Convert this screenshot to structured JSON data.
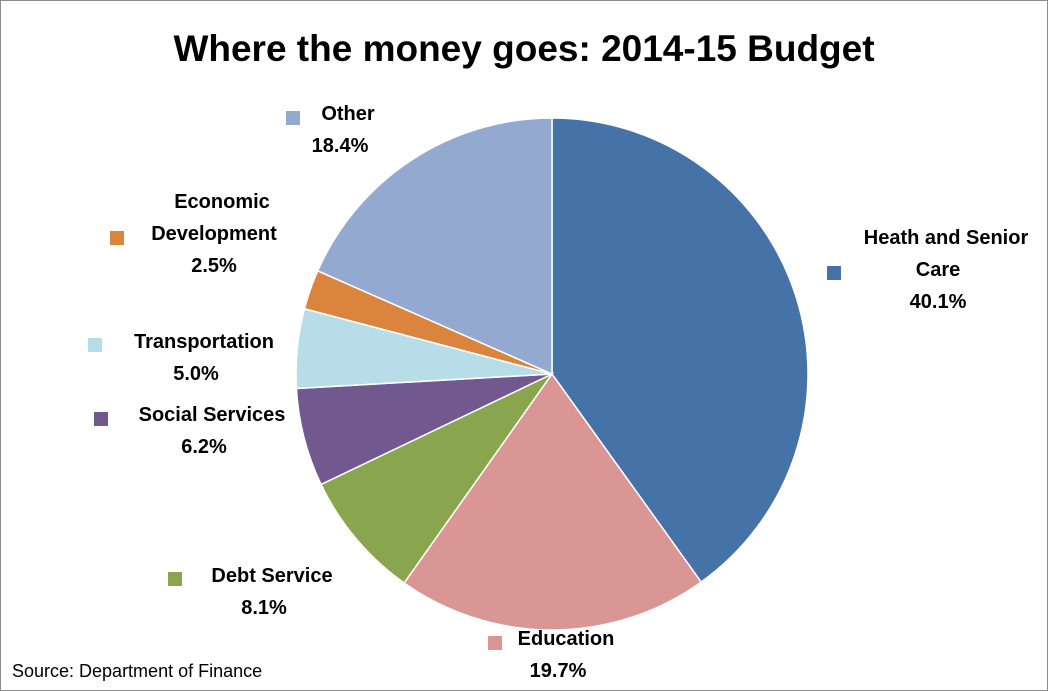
{
  "chart_data": {
    "type": "pie",
    "title": "Where the money goes: 2014-15 Budget",
    "source": "Source: Department of Finance",
    "slices": [
      {
        "name": "Heath and Senior Care",
        "label_lines": [
          "Heath and Senior",
          "Care"
        ],
        "value": 40.1,
        "value_label": "40.1%",
        "color": "#4572a7"
      },
      {
        "name": "Education",
        "label_lines": [
          "Education"
        ],
        "value": 19.7,
        "value_label": "19.7%",
        "color": "#da9694"
      },
      {
        "name": "Debt Service",
        "label_lines": [
          "Debt Service"
        ],
        "value": 8.1,
        "value_label": "8.1%",
        "color": "#89a54e"
      },
      {
        "name": "Social Services",
        "label_lines": [
          "Social Services"
        ],
        "value": 6.2,
        "value_label": "6.2%",
        "color": "#71588f"
      },
      {
        "name": "Transportation",
        "label_lines": [
          "Transportation"
        ],
        "value": 5.0,
        "value_label": "5.0%",
        "color": "#b7dee8"
      },
      {
        "name": "Economic Development",
        "label_lines": [
          "Economic",
          "Development"
        ],
        "value": 2.5,
        "value_label": "2.5%",
        "color": "#db843d"
      },
      {
        "name": "Other",
        "label_lines": [
          "Other"
        ],
        "value": 18.4,
        "value_label": "18.4%",
        "color": "#93a9d0"
      }
    ]
  }
}
